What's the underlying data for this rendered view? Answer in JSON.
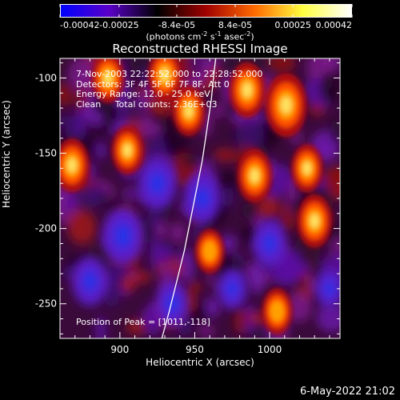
{
  "colorbar": {
    "tick_labels": [
      "-0.00042",
      "-0.00025",
      "-8.4e-05",
      "8.4e-05",
      "0.00025",
      "0.00042"
    ],
    "units_main": "(photons cm",
    "units_exp1": "-2",
    "units_mid": " s",
    "units_exp2": "-1",
    "units_mid2": " asec",
    "units_exp3": "-2",
    "units_end": ")",
    "colors": [
      "#0000ff",
      "#5a00c8",
      "#000000",
      "#a00000",
      "#ff6a00",
      "#ffff40",
      "#ffffff"
    ]
  },
  "title": "Reconstructed RHESSI Image",
  "annotation": {
    "line1": "7-Nov-2003 22:22:52.000 to 22:28:52.000",
    "line2": "Detectors: 3F 4F 5F 6F 7F 8F, Att 0",
    "line3": "Energy Range: 12.0 - 25.0 keV",
    "line4": "Clean     Total counts: 2.36E+03"
  },
  "peak_label": "Position of Peak = [1011,-118]",
  "timestamp": "6-May-2022 21:02",
  "chart_data": {
    "type": "heatmap",
    "title": "Reconstructed RHESSI Image",
    "xlabel": "Heliocentric X (arcsec)",
    "ylabel": "Heliocentric Y (arcsec)",
    "xlim": [
      860,
      1047
    ],
    "ylim": [
      -273,
      -87
    ],
    "x_ticks": [
      900,
      950,
      1000
    ],
    "y_ticks": [
      -100,
      -150,
      -200,
      -250
    ],
    "color_range": [
      -0.00042,
      0.00042
    ],
    "colormap": "blue-purple-black-red-orange-yellow-white",
    "peak": [
      1011,
      -118
    ],
    "limb_curve": [
      [
        928,
        -273
      ],
      [
        933,
        -255
      ],
      [
        938,
        -235
      ],
      [
        943,
        -215
      ],
      [
        947,
        -195
      ],
      [
        951,
        -175
      ],
      [
        955,
        -155
      ],
      [
        958,
        -135
      ],
      [
        961,
        -115
      ],
      [
        963,
        -95
      ],
      [
        964,
        -87
      ]
    ],
    "bright_sources": [
      {
        "x": 868,
        "y": -158,
        "level": 0.7
      },
      {
        "x": 892,
        "y": -100,
        "level": 0.6
      },
      {
        "x": 905,
        "y": -148,
        "level": 0.55
      },
      {
        "x": 930,
        "y": -98,
        "level": 0.65
      },
      {
        "x": 946,
        "y": -122,
        "level": 0.6
      },
      {
        "x": 985,
        "y": -108,
        "level": 0.75
      },
      {
        "x": 990,
        "y": -165,
        "level": 0.7
      },
      {
        "x": 1011,
        "y": -118,
        "level": 1.0
      },
      {
        "x": 1025,
        "y": -160,
        "level": 0.55
      },
      {
        "x": 1030,
        "y": -195,
        "level": 0.7
      },
      {
        "x": 960,
        "y": -215,
        "level": 0.45
      },
      {
        "x": 1005,
        "y": -255,
        "level": 0.5
      }
    ],
    "dark_sources": [
      {
        "x": 902,
        "y": -205,
        "level": 1.0
      },
      {
        "x": 880,
        "y": -235,
        "level": 0.8
      },
      {
        "x": 935,
        "y": -250,
        "level": 0.7
      },
      {
        "x": 955,
        "y": -180,
        "level": 0.85
      },
      {
        "x": 1000,
        "y": -210,
        "level": 0.75
      },
      {
        "x": 925,
        "y": -170,
        "level": 0.9
      },
      {
        "x": 975,
        "y": -240,
        "level": 0.6
      },
      {
        "x": 1040,
        "y": -240,
        "level": 0.55
      }
    ]
  }
}
